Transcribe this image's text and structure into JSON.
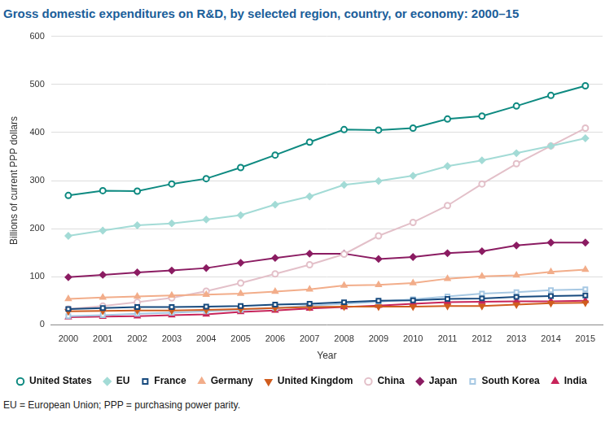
{
  "chart_data": {
    "type": "line",
    "title": "Gross domestic expenditures on R&D, by selected region, country, or economy: 2000–15",
    "x_label": "Year",
    "y_label": "Billions of current PPP dollars",
    "footnote": "EU = European Union; PPP = purchasing power parity.",
    "categories": [
      "2000",
      "2001",
      "2002",
      "2003",
      "2004",
      "2005",
      "2006",
      "2007",
      "2008",
      "2009",
      "2010",
      "2011",
      "2012",
      "2013",
      "2014",
      "2015"
    ],
    "ylim": [
      0,
      600
    ],
    "yticks": [
      0,
      100,
      200,
      300,
      400,
      500,
      600
    ],
    "grid": "y",
    "legend": "bottom",
    "series": [
      {
        "name": "United States",
        "color": "#0e8a81",
        "marker": "circle",
        "values": [
          269,
          279,
          278,
          293,
          304,
          327,
          353,
          380,
          406,
          405,
          409,
          428,
          434,
          455,
          477,
          497
        ]
      },
      {
        "name": "EU",
        "color": "#a3dbd6",
        "marker": "diamond",
        "values": [
          185,
          196,
          207,
          211,
          219,
          228,
          250,
          267,
          291,
          299,
          310,
          330,
          342,
          357,
          372,
          388
        ]
      },
      {
        "name": "France",
        "color": "#174a7e",
        "marker": "square",
        "values": [
          33,
          35,
          37,
          37,
          38,
          39,
          42,
          44,
          47,
          50,
          51,
          54,
          55,
          58,
          60,
          61
        ]
      },
      {
        "name": "Germany",
        "color": "#f2ad8a",
        "marker": "triangle",
        "values": [
          54,
          57,
          59,
          61,
          63,
          65,
          69,
          74,
          82,
          83,
          87,
          96,
          101,
          103,
          110,
          115
        ]
      },
      {
        "name": "United Kingdom",
        "color": "#d05d1f",
        "marker": "triangle-down",
        "values": [
          28,
          29,
          30,
          30,
          31,
          33,
          35,
          37,
          38,
          38,
          38,
          39,
          39,
          42,
          45,
          46
        ]
      },
      {
        "name": "China",
        "color": "#e3c0c9",
        "marker": "circle",
        "values": [
          33,
          39,
          47,
          56,
          70,
          87,
          106,
          125,
          147,
          185,
          213,
          248,
          293,
          335,
          372,
          409
        ]
      },
      {
        "name": "Japan",
        "color": "#8b1c62",
        "marker": "diamond",
        "values": [
          99,
          104,
          109,
          113,
          118,
          129,
          139,
          148,
          148,
          137,
          141,
          149,
          153,
          165,
          171,
          171
        ]
      },
      {
        "name": "South Korea",
        "color": "#a6c8e3",
        "marker": "square",
        "values": [
          18,
          20,
          23,
          25,
          28,
          31,
          35,
          40,
          44,
          48,
          53,
          59,
          65,
          68,
          72,
          74
        ]
      },
      {
        "name": "India",
        "color": "#c7245a",
        "marker": "triangle",
        "values": [
          16,
          17,
          18,
          20,
          22,
          27,
          30,
          34,
          37,
          40,
          44,
          47,
          48,
          49,
          49,
          50
        ]
      }
    ]
  }
}
